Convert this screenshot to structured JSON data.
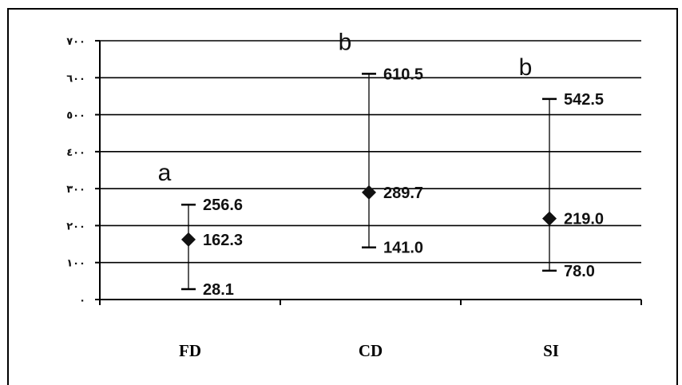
{
  "chart_data": {
    "type": "scatter",
    "categories": [
      "FD",
      "CD",
      "SI"
    ],
    "y_ticks": [
      "٠",
      "١٠٠",
      "٢٠٠",
      "٣٠٠",
      "٤٠٠",
      "٥٠٠",
      "٦٠٠",
      "٧٠٠"
    ],
    "ylim": [
      0,
      700
    ],
    "grid": true,
    "points": [
      {
        "category": "FD",
        "mean": 162.3,
        "max": 256.6,
        "min": 28.1,
        "group": "a",
        "labels": {
          "mean": "162.3",
          "max": "256.6",
          "min": "28.1"
        }
      },
      {
        "category": "CD",
        "mean": 289.7,
        "max": 610.5,
        "min": 141.0,
        "group": "b",
        "labels": {
          "mean": "289.7",
          "max": "610.5",
          "min": "141.0"
        }
      },
      {
        "category": "SI",
        "mean": 219.0,
        "max": 542.5,
        "min": 78.0,
        "group": "b",
        "labels": {
          "mean": "219.0",
          "max": "542.5",
          "min": "78.0"
        }
      }
    ]
  }
}
